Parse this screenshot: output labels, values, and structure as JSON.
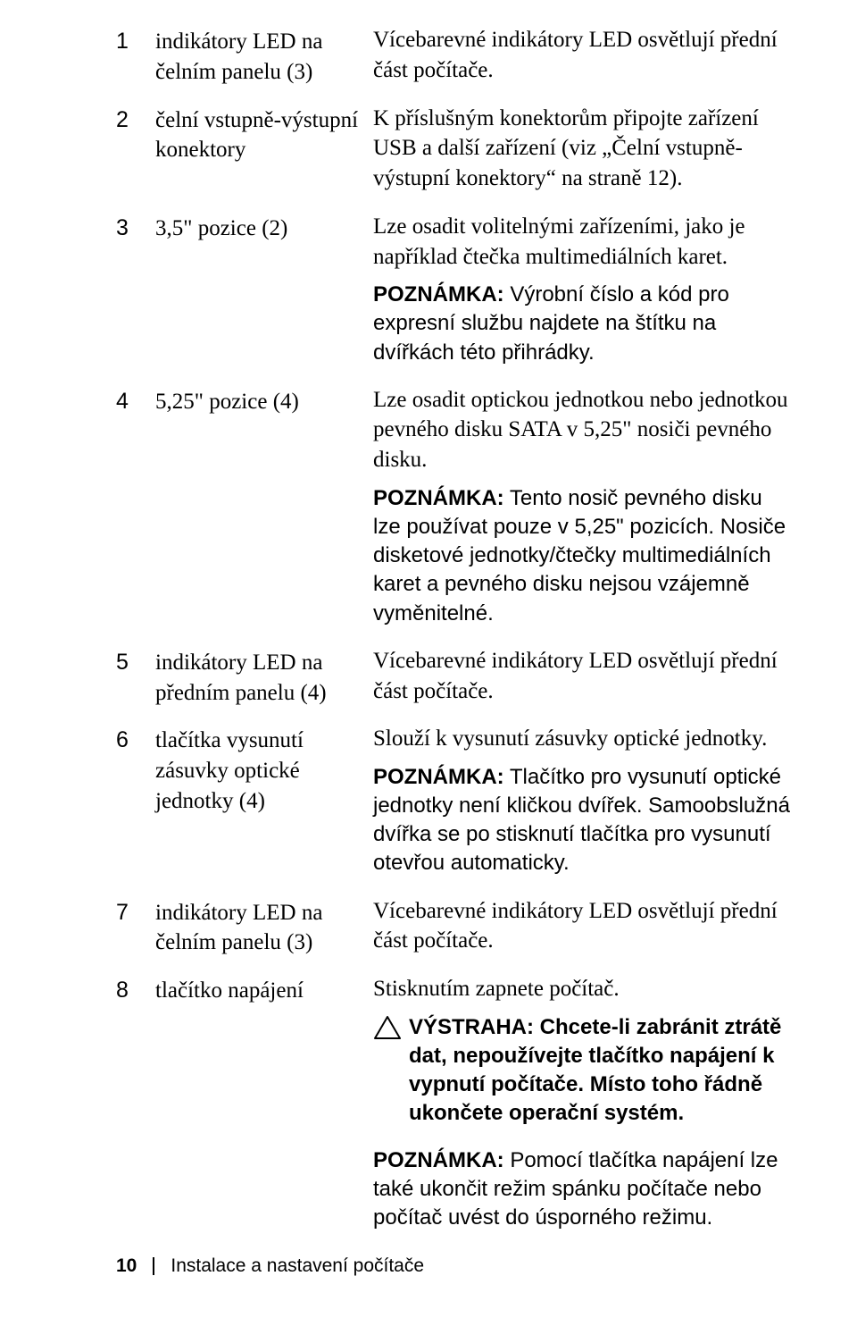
{
  "rows": [
    {
      "num": "1",
      "label": "indikátory LED na čelním panelu (3)",
      "paras": [
        {
          "kind": "plain",
          "text": "Vícebarevné indikátory LED osvětlují přední část počítače."
        }
      ]
    },
    {
      "num": "2",
      "label": "čelní vstupně-výstupní konektory",
      "paras": [
        {
          "kind": "plain",
          "text": "K příslušným konektorům připojte zařízení USB a další zařízení (viz „Čelní vstupně-výstupní konektory“ na straně 12)."
        }
      ]
    },
    {
      "num": "3",
      "label": "3,5\" pozice (2)",
      "paras": [
        {
          "kind": "plain",
          "text": "Lze osadit volitelnými zařízeními, jako je například čtečka multimediálních karet."
        },
        {
          "kind": "note",
          "label": "POZNÁMKA:",
          "text": " Výrobní číslo a kód pro expresní službu najdete na štítku na dvířkách této přihrádky."
        }
      ]
    },
    {
      "num": "4",
      "label": "5,25\" pozice (4)",
      "paras": [
        {
          "kind": "plain",
          "text": "Lze osadit optickou jednotkou nebo jednotkou pevného disku SATA v 5,25\" nosiči pevného disku."
        },
        {
          "kind": "note",
          "label": "POZNÁMKA:",
          "text": " Tento nosič pevného disku lze používat pouze v 5,25\" pozicích. Nosiče disketové jednotky/čtečky multimediálních karet a pevného disku nejsou vzájemně vyměnitelné."
        }
      ]
    },
    {
      "num": "5",
      "label": "indikátory LED na předním panelu (4)",
      "paras": [
        {
          "kind": "plain",
          "text": "Vícebarevné indikátory LED osvětlují přední část počítače."
        }
      ]
    },
    {
      "num": "6",
      "label": "tlačítka vysunutí zásuvky optické jednotky (4)",
      "paras": [
        {
          "kind": "plain",
          "text": "Slouží k vysunutí zásuvky optické jednotky."
        },
        {
          "kind": "note",
          "label": "POZNÁMKA:",
          "text": " Tlačítko pro vysunutí optické jednotky není kličkou dvířek. Samoobslužná dvířka se po stisknutí tlačítka pro vysunutí otevřou automaticky."
        }
      ]
    },
    {
      "num": "7",
      "label": "indikátory LED na čelním panelu (3)",
      "paras": [
        {
          "kind": "plain",
          "text": "Vícebarevné indikátory LED osvětlují přední část počítače."
        }
      ]
    },
    {
      "num": "8",
      "label": "tlačítko napájení",
      "paras": [
        {
          "kind": "plain",
          "text": "Stisknutím zapnete počítač."
        },
        {
          "kind": "warning",
          "label": "VÝSTRAHA: ",
          "text": "Chcete-li zabránit ztrátě dat, nepoužívejte tlačítko napájení k vypnutí počítače. Místo toho řádně ukončete operační systém."
        },
        {
          "kind": "note",
          "label": "POZNÁMKA:",
          "text": " Pomocí tlačítka napájení lze také ukončit režim spánku počítače nebo počítač uvést do úsporného režimu."
        }
      ]
    }
  ],
  "footer": {
    "page": "10",
    "section": "Instalace a nastavení počítače"
  }
}
